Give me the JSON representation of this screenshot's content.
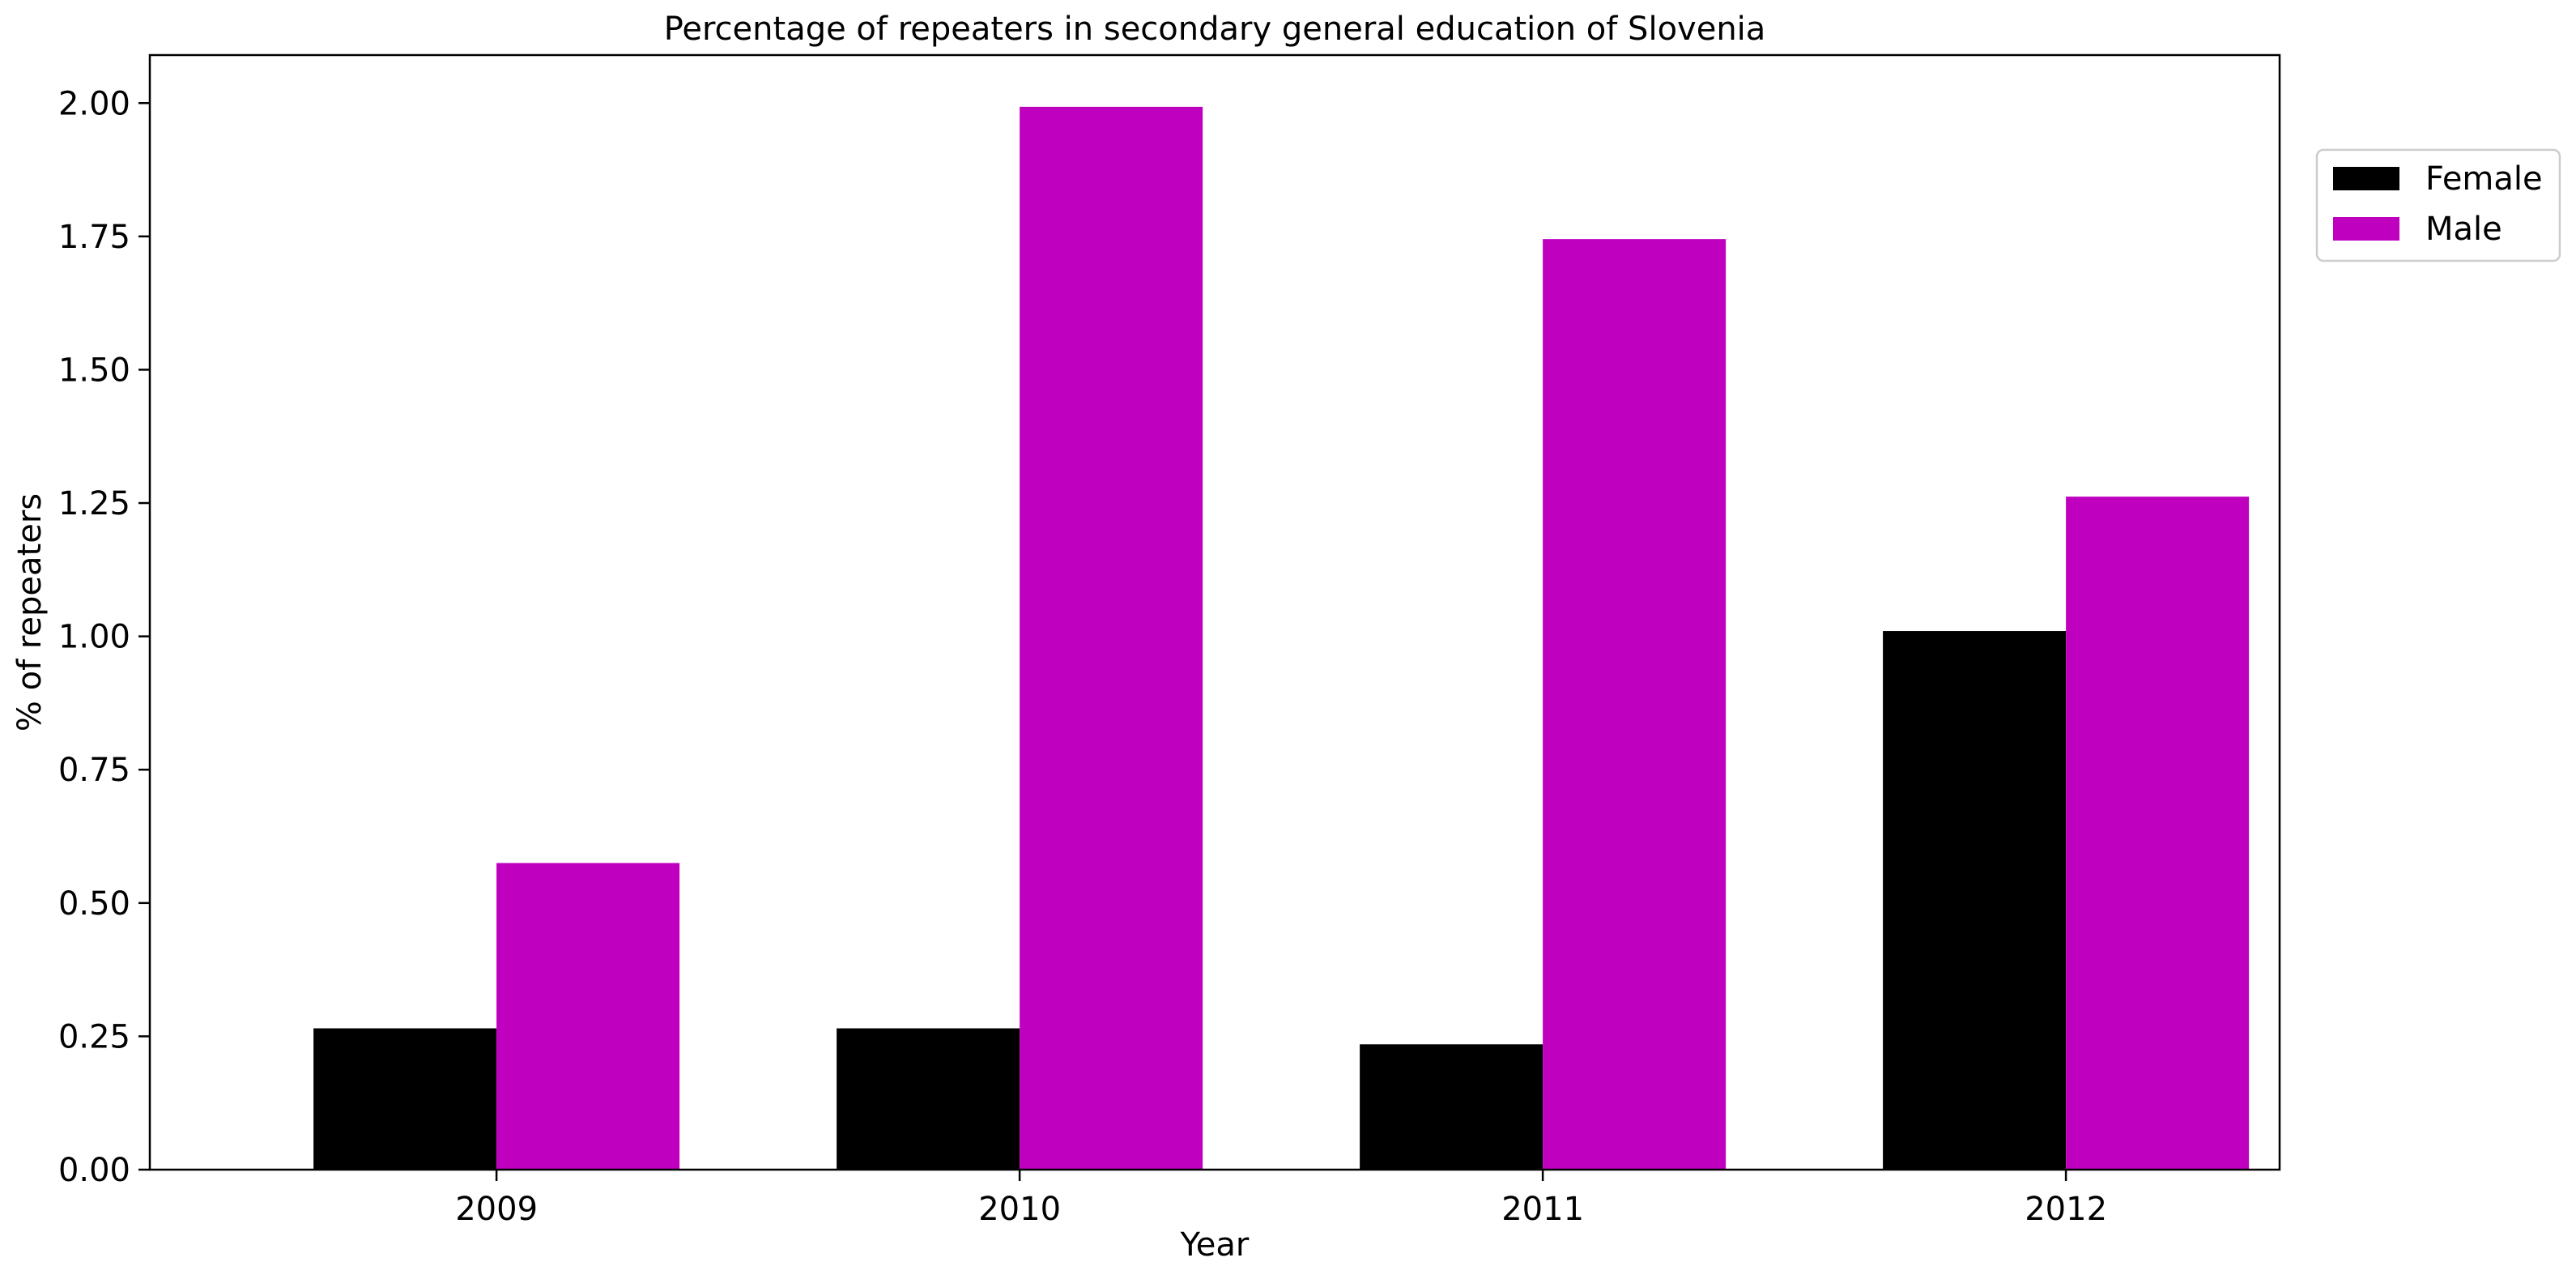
{
  "chart_data": {
    "type": "bar",
    "title": "Percentage of repeaters in secondary general education of Slovenia",
    "xlabel": "Year",
    "ylabel": "% of repeaters",
    "categories": [
      "2009",
      "2010",
      "2011",
      "2012"
    ],
    "series": [
      {
        "name": "Female",
        "color": "#000000",
        "values": [
          0.265,
          0.265,
          0.235,
          1.01
        ]
      },
      {
        "name": "Male",
        "color": "#bf00bf",
        "values": [
          0.575,
          1.993,
          1.745,
          1.262
        ]
      }
    ],
    "ylim": [
      0,
      2.09
    ],
    "yticks": [
      0.0,
      0.25,
      0.5,
      0.75,
      1.0,
      1.25,
      1.5,
      1.75,
      2.0
    ],
    "ytick_labels": [
      "0.00",
      "0.25",
      "0.50",
      "0.75",
      "1.00",
      "1.25",
      "1.50",
      "1.75",
      "2.00"
    ],
    "grid": false,
    "legend_position": "outside-top-right"
  }
}
